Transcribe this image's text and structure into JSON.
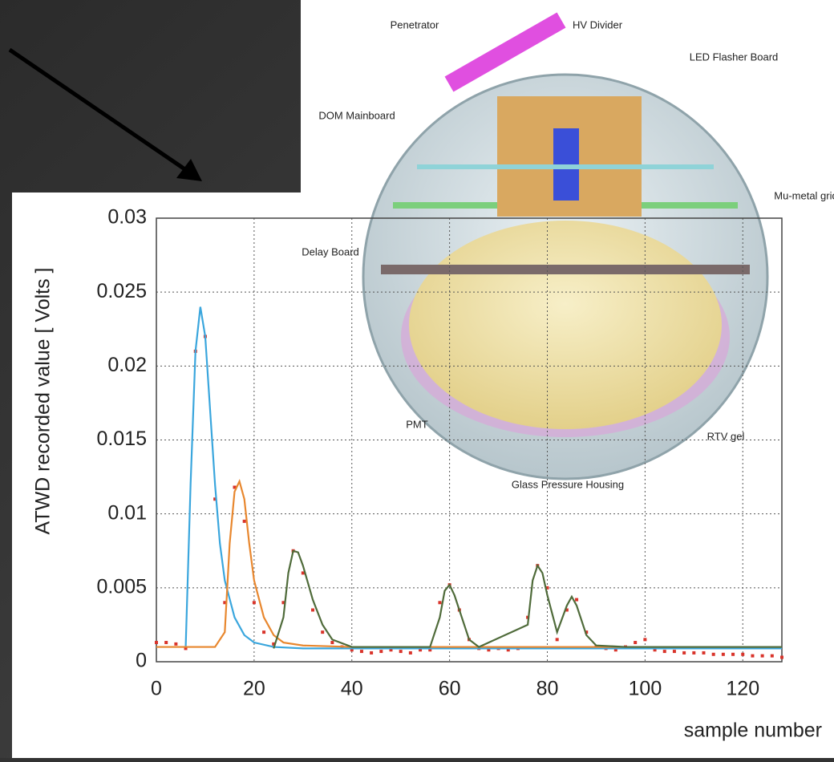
{
  "chart_data": {
    "type": "line",
    "y_label": "ATWD recorded value [ Volts ]",
    "x_label": "sample number",
    "xlim": [
      0,
      128
    ],
    "xticks": [
      0,
      20,
      40,
      60,
      80,
      100,
      120
    ],
    "ylim": [
      0,
      0.03
    ],
    "yticks": [
      0,
      0.005,
      0.01,
      0.015,
      0.02,
      0.025,
      0.03
    ],
    "grid": true,
    "series": [
      {
        "style": "dots",
        "color": "#d9342b",
        "x": [
          0,
          2,
          4,
          6,
          8,
          10,
          12,
          14,
          16,
          18,
          20,
          22,
          24,
          26,
          28,
          30,
          32,
          34,
          36,
          38,
          40,
          42,
          44,
          46,
          48,
          50,
          52,
          54,
          56,
          58,
          60,
          62,
          64,
          66,
          68,
          70,
          72,
          74,
          76,
          78,
          80,
          82,
          84,
          86,
          88,
          90,
          92,
          94,
          96,
          98,
          100,
          102,
          104,
          106,
          108,
          110,
          112,
          114,
          116,
          118,
          120,
          122,
          124,
          126,
          128
        ],
        "values": [
          0.0013,
          0.0013,
          0.0012,
          0.0009,
          0.021,
          0.022,
          0.011,
          0.004,
          0.0118,
          0.0095,
          0.004,
          0.002,
          0.0012,
          0.004,
          0.0075,
          0.006,
          0.0035,
          0.002,
          0.0013,
          0.001,
          0.0008,
          0.0007,
          0.0006,
          0.0007,
          0.0008,
          0.0007,
          0.0006,
          0.0008,
          0.0008,
          0.004,
          0.0052,
          0.0035,
          0.0015,
          0.0009,
          0.0008,
          0.0009,
          0.0008,
          0.0009,
          0.003,
          0.0065,
          0.005,
          0.0015,
          0.0035,
          0.0042,
          0.002,
          0.001,
          0.0009,
          0.0008,
          0.001,
          0.0013,
          0.0015,
          0.0008,
          0.0007,
          0.0007,
          0.0006,
          0.0006,
          0.0006,
          0.0005,
          0.0005,
          0.0005,
          0.0005,
          0.0004,
          0.0004,
          0.0004,
          0.0003
        ]
      },
      {
        "style": "line",
        "color": "#3aa6dd",
        "x": [
          6,
          7,
          8,
          9,
          10,
          11,
          12,
          13,
          14,
          16,
          18,
          20,
          24,
          30,
          40,
          60,
          128
        ],
        "values": [
          0.001,
          0.012,
          0.021,
          0.024,
          0.022,
          0.017,
          0.012,
          0.008,
          0.0055,
          0.003,
          0.0018,
          0.0013,
          0.001,
          0.0009,
          0.0009,
          0.0009,
          0.0009
        ]
      },
      {
        "style": "line",
        "color": "#e8872e",
        "x": [
          0,
          12,
          14,
          15,
          16,
          17,
          18,
          19,
          20,
          22,
          24,
          26,
          30,
          40,
          60,
          128
        ],
        "values": [
          0.001,
          0.001,
          0.002,
          0.008,
          0.0115,
          0.0122,
          0.011,
          0.008,
          0.0055,
          0.003,
          0.0018,
          0.0013,
          0.0011,
          0.001,
          0.001,
          0.001
        ]
      },
      {
        "style": "line",
        "color": "#4f6b3a",
        "x": [
          24,
          26,
          27,
          28,
          29,
          30,
          32,
          34,
          36,
          40,
          56,
          58,
          59,
          60,
          61,
          62,
          64,
          66,
          76,
          77,
          78,
          79,
          80,
          82,
          84,
          85,
          86,
          88,
          90,
          96,
          128
        ],
        "values": [
          0.0009,
          0.003,
          0.006,
          0.0075,
          0.0074,
          0.0065,
          0.0042,
          0.0025,
          0.0015,
          0.001,
          0.001,
          0.003,
          0.0048,
          0.0052,
          0.0045,
          0.0035,
          0.0015,
          0.001,
          0.0025,
          0.0055,
          0.0065,
          0.006,
          0.0045,
          0.002,
          0.0038,
          0.0044,
          0.0038,
          0.0018,
          0.0011,
          0.001,
          0.001
        ]
      }
    ]
  },
  "diagram": {
    "labels": [
      "Penetrator",
      "HV Divider",
      "LED Flasher Board",
      "DOM Mainboard",
      "Mu-metal grid",
      "Delay Board",
      "PMT",
      "RTV gel",
      "Glass Pressure Housing"
    ]
  }
}
